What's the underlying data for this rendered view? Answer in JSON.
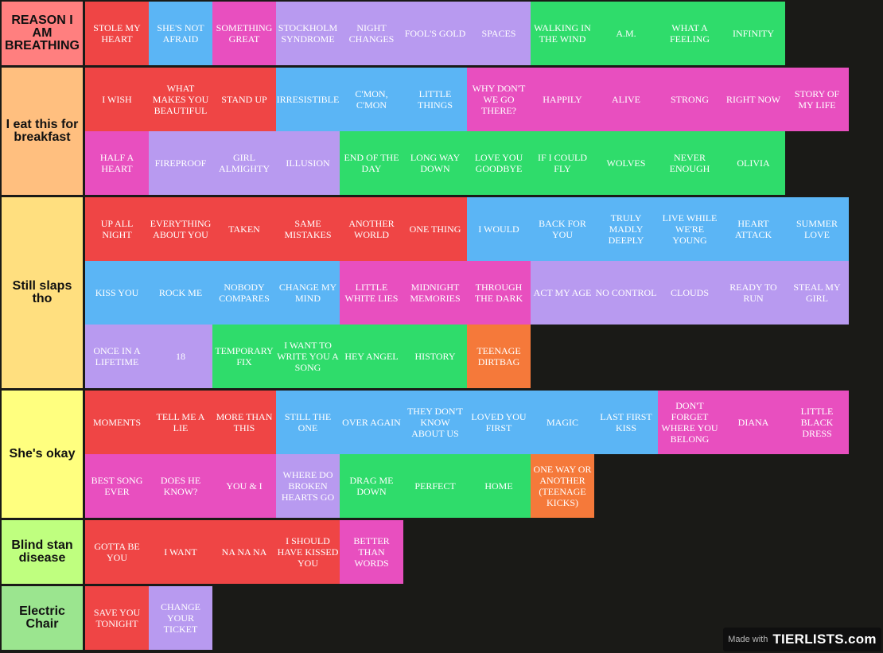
{
  "colors": {
    "red": "#ef4545",
    "blue": "#5bb5f5",
    "pink": "#e84fbf",
    "purple": "#b89af0",
    "green": "#2fdc6b",
    "orange": "#f5793a",
    "background": "#1a1a17"
  },
  "tiers": [
    {
      "label": "REASON I AM BREATHING",
      "color": "#ff7f7f",
      "items": [
        {
          "text": "STOLE MY HEART",
          "color": "red"
        },
        {
          "text": "SHE'S NOT AFRAID",
          "color": "blue"
        },
        {
          "text": "SOMETHING GREAT",
          "color": "pink"
        },
        {
          "text": "STOCKHOLM SYNDROME",
          "color": "purple"
        },
        {
          "text": "NIGHT CHANGES",
          "color": "purple"
        },
        {
          "text": "FOOL'S GOLD",
          "color": "purple"
        },
        {
          "text": "SPACES",
          "color": "purple"
        },
        {
          "text": "WALKING IN THE WIND",
          "color": "green"
        },
        {
          "text": "A.M.",
          "color": "green"
        },
        {
          "text": "WHAT A FEELING",
          "color": "green"
        },
        {
          "text": "INFINITY",
          "color": "green"
        }
      ]
    },
    {
      "label": "I eat this for breakfast",
      "color": "#ffbf7f",
      "items": [
        {
          "text": "I WISH",
          "color": "red"
        },
        {
          "text": "WHAT MAKES YOU BEAUTIFUL",
          "color": "red"
        },
        {
          "text": "STAND UP",
          "color": "red"
        },
        {
          "text": "IRRESISTIBLE",
          "color": "blue"
        },
        {
          "text": "C'MON, C'MON",
          "color": "blue"
        },
        {
          "text": "LITTLE THINGS",
          "color": "blue"
        },
        {
          "text": "WHY DON'T WE GO THERE?",
          "color": "pink"
        },
        {
          "text": "HAPPILY",
          "color": "pink"
        },
        {
          "text": "ALIVE",
          "color": "pink"
        },
        {
          "text": "STRONG",
          "color": "pink"
        },
        {
          "text": "RIGHT NOW",
          "color": "pink"
        },
        {
          "text": "STORY OF MY LIFE",
          "color": "pink"
        },
        {
          "text": "HALF A HEART",
          "color": "pink"
        },
        {
          "text": "FIREPROOF",
          "color": "purple"
        },
        {
          "text": "GIRL ALMIGHTY",
          "color": "purple"
        },
        {
          "text": "ILLUSION",
          "color": "purple"
        },
        {
          "text": "END OF THE DAY",
          "color": "green"
        },
        {
          "text": "LONG WAY DOWN",
          "color": "green"
        },
        {
          "text": "LOVE YOU GOODBYE",
          "color": "green"
        },
        {
          "text": "IF I COULD FLY",
          "color": "green"
        },
        {
          "text": "WOLVES",
          "color": "green"
        },
        {
          "text": "NEVER ENOUGH",
          "color": "green"
        },
        {
          "text": "OLIVIA",
          "color": "green"
        }
      ]
    },
    {
      "label": "Still slaps tho",
      "color": "#ffdf7f",
      "items": [
        {
          "text": "UP ALL NIGHT",
          "color": "red"
        },
        {
          "text": "EVERYTHING ABOUT YOU",
          "color": "red"
        },
        {
          "text": "TAKEN",
          "color": "red"
        },
        {
          "text": "SAME MISTAKES",
          "color": "red"
        },
        {
          "text": "ANOTHER WORLD",
          "color": "red"
        },
        {
          "text": "ONE THING",
          "color": "red"
        },
        {
          "text": "I WOULD",
          "color": "blue"
        },
        {
          "text": "BACK FOR YOU",
          "color": "blue"
        },
        {
          "text": "TRULY MADLY DEEPLY",
          "color": "blue"
        },
        {
          "text": "LIVE WHILE WE'RE YOUNG",
          "color": "blue"
        },
        {
          "text": "HEART ATTACK",
          "color": "blue"
        },
        {
          "text": "SUMMER LOVE",
          "color": "blue"
        },
        {
          "text": "KISS YOU",
          "color": "blue"
        },
        {
          "text": "ROCK ME",
          "color": "blue"
        },
        {
          "text": "NOBODY COMPARES",
          "color": "blue"
        },
        {
          "text": "CHANGE MY MIND",
          "color": "blue"
        },
        {
          "text": "LITTLE WHITE LIES",
          "color": "pink"
        },
        {
          "text": "MIDNIGHT MEMORIES",
          "color": "pink"
        },
        {
          "text": "THROUGH THE DARK",
          "color": "pink"
        },
        {
          "text": "ACT MY AGE",
          "color": "purple"
        },
        {
          "text": "NO CONTROL",
          "color": "purple"
        },
        {
          "text": "CLOUDS",
          "color": "purple"
        },
        {
          "text": "READY TO RUN",
          "color": "purple"
        },
        {
          "text": "STEAL MY GIRL",
          "color": "purple"
        },
        {
          "text": "ONCE IN A LIFETIME",
          "color": "purple"
        },
        {
          "text": "18",
          "color": "purple"
        },
        {
          "text": "TEMPORARY FIX",
          "color": "green"
        },
        {
          "text": "I WANT TO WRITE YOU A SONG",
          "color": "green"
        },
        {
          "text": "HEY ANGEL",
          "color": "green"
        },
        {
          "text": "HISTORY",
          "color": "green"
        },
        {
          "text": "TEENAGE DIRTBAG",
          "color": "orange"
        }
      ]
    },
    {
      "label": "She's okay",
      "color": "#ffff7f",
      "items": [
        {
          "text": "MOMENTS",
          "color": "red"
        },
        {
          "text": "TELL ME A LIE",
          "color": "red"
        },
        {
          "text": "MORE THAN THIS",
          "color": "red"
        },
        {
          "text": "STILL THE ONE",
          "color": "blue"
        },
        {
          "text": "OVER AGAIN",
          "color": "blue"
        },
        {
          "text": "THEY DON'T KNOW ABOUT US",
          "color": "blue"
        },
        {
          "text": "LOVED YOU FIRST",
          "color": "blue"
        },
        {
          "text": "MAGIC",
          "color": "blue"
        },
        {
          "text": "LAST FIRST KISS",
          "color": "blue"
        },
        {
          "text": "DON'T FORGET WHERE YOU BELONG",
          "color": "pink"
        },
        {
          "text": "DIANA",
          "color": "pink"
        },
        {
          "text": "LITTLE BLACK DRESS",
          "color": "pink"
        },
        {
          "text": "BEST SONG EVER",
          "color": "pink"
        },
        {
          "text": "DOES HE KNOW?",
          "color": "pink"
        },
        {
          "text": "YOU & I",
          "color": "pink"
        },
        {
          "text": "WHERE DO BROKEN HEARTS GO",
          "color": "purple"
        },
        {
          "text": "DRAG ME DOWN",
          "color": "green"
        },
        {
          "text": "PERFECT",
          "color": "green"
        },
        {
          "text": "HOME",
          "color": "green"
        },
        {
          "text": "ONE WAY OR ANOTHER (TEENAGE KICKS)",
          "color": "orange"
        }
      ]
    },
    {
      "label": "Blind stan disease",
      "color": "#bfff7f",
      "items": [
        {
          "text": "GOTTA BE YOU",
          "color": "red"
        },
        {
          "text": "I WANT",
          "color": "red"
        },
        {
          "text": "NA NA NA",
          "color": "red"
        },
        {
          "text": "I SHOULD HAVE KISSED YOU",
          "color": "red"
        },
        {
          "text": "BETTER THAN WORDS",
          "color": "pink"
        }
      ]
    },
    {
      "label": "Electric Chair",
      "color": "#9be58f",
      "items": [
        {
          "text": "SAVE YOU TONIGHT",
          "color": "red"
        },
        {
          "text": "CHANGE YOUR TICKET",
          "color": "purple"
        }
      ]
    }
  ],
  "watermark": {
    "made_with": "Made with",
    "brand": "TIERLISTS.com"
  }
}
